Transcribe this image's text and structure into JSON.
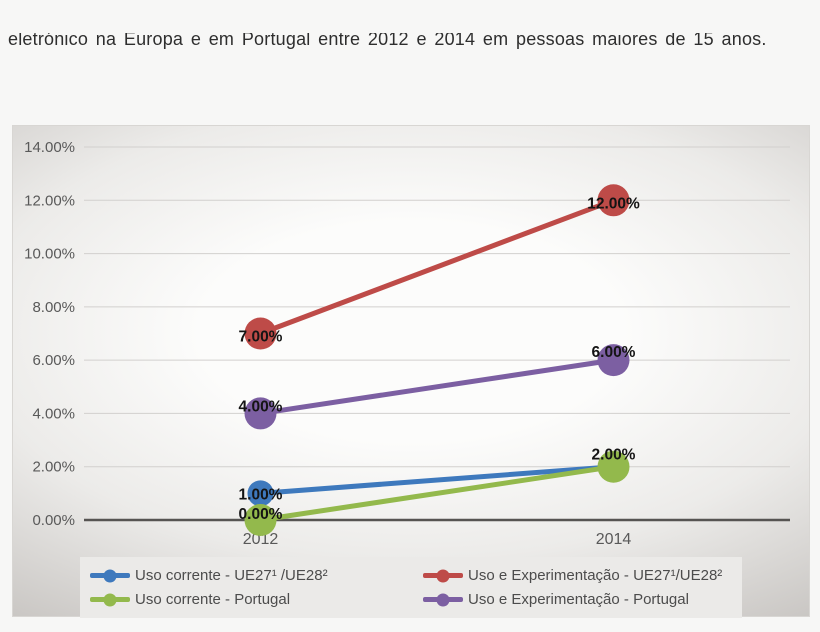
{
  "header": {
    "caption": "eletrónico na Europa e em Portugal entre 2012 e 2014 em pessoas maiores de 15 anos."
  },
  "chart_data": {
    "type": "line",
    "categories": [
      "2012",
      "2014"
    ],
    "ylim": [
      0,
      14
    ],
    "grid": true,
    "legend_position": "bottom",
    "yticks": [
      {
        "value": 14,
        "label": "14.00%"
      },
      {
        "value": 12,
        "label": "12.00%"
      },
      {
        "value": 10,
        "label": "10.00%"
      },
      {
        "value": 8,
        "label": "8.00%"
      },
      {
        "value": 6,
        "label": "6.00%"
      },
      {
        "value": 4,
        "label": "4.00%"
      },
      {
        "value": 2,
        "label": "2.00%"
      },
      {
        "value": 0,
        "label": "0.00%"
      }
    ],
    "series": [
      {
        "name": "Uso corrente - UE27¹ /UE28²",
        "color": "#3E79BD",
        "values": [
          1,
          2
        ],
        "point_labels": [
          "1.00%",
          null
        ]
      },
      {
        "name": "Uso e Experimentação - UE27¹/UE28²",
        "color": "#BE4B48",
        "values": [
          7,
          12
        ],
        "point_labels": [
          "7.00%",
          "12.00%"
        ]
      },
      {
        "name": "Uso corrente - Portugal",
        "color": "#93B94C",
        "values": [
          0,
          2
        ],
        "point_labels": [
          "0.00%",
          "2.00%"
        ]
      },
      {
        "name": "Uso e Experimentação - Portugal",
        "color": "#7C5FA2",
        "values": [
          4,
          6
        ],
        "point_labels": [
          "4.00%",
          "6.00%"
        ]
      }
    ],
    "colors": {
      "axis_text": "#595959",
      "gridline": "#d2d0ce",
      "zero_line": "#565452",
      "data_label_text": "#141414",
      "legend_background": "#ebeae8"
    }
  }
}
